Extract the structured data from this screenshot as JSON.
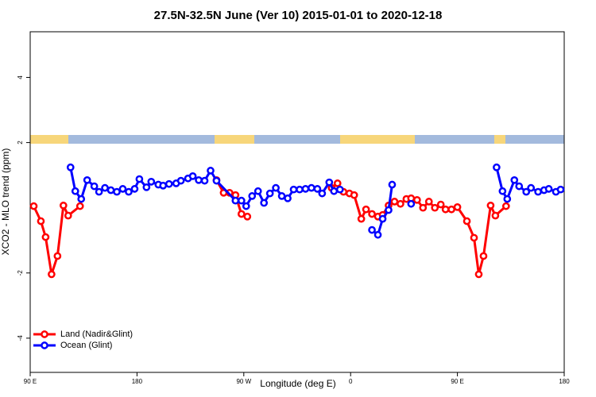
{
  "chart_data": {
    "type": "line",
    "title": "27.5N-32.5N June (Ver 10)   2015-01-01 to 2020-12-18",
    "x_label": "Longitude (deg E)",
    "y_label": "XCO2 - MLO trend (ppm)",
    "xlim": [
      90,
      540
    ],
    "ylim": [
      -5.05,
      5.4
    ],
    "xticks": [
      {
        "value": 90,
        "label": "90 E"
      },
      180,
      {
        "value": 270,
        "label": "90 W"
      },
      {
        "value": 360,
        "label": "0"
      },
      {
        "value": 450,
        "label": "90 E"
      },
      {
        "value": 540,
        "label": "180"
      }
    ],
    "yticks": [
      -4,
      -2,
      2,
      4
    ],
    "legend": "bottom-left",
    "series": [
      {
        "name": "Land (Nadir&Glint)",
        "color": "#ff0000",
        "x": [
          93,
          99,
          103,
          108,
          113,
          118,
          122,
          132,
          null,
          247,
          253,
          258,
          263,
          268,
          273,
          null,
          344,
          349,
          354,
          359,
          363,
          369,
          373,
          378,
          383,
          387,
          392,
          397,
          402,
          407,
          411,
          416,
          421,
          426,
          431,
          436,
          440,
          445,
          450,
          458,
          464,
          468,
          472,
          478,
          482,
          491
        ],
        "values": [
          0.05,
          -0.41,
          -0.9,
          -2.04,
          -1.48,
          0.07,
          -0.24,
          0.05,
          null,
          0.85,
          0.46,
          0.46,
          0.39,
          -0.19,
          -0.27,
          null,
          0.61,
          0.75,
          0.49,
          0.44,
          0.39,
          -0.34,
          -0.05,
          -0.19,
          -0.27,
          -0.22,
          0.07,
          0.19,
          0.12,
          0.27,
          0.29,
          0.24,
          0,
          0.19,
          0,
          0.1,
          -0.05,
          -0.05,
          0.02,
          -0.41,
          -0.92,
          -2.04,
          -1.48,
          0.07,
          -0.24,
          0.05
        ]
      },
      {
        "name": "Ocean (Glint)",
        "color": "#0000ff",
        "x": [
          124,
          128,
          133,
          138,
          144,
          148,
          153,
          158,
          163,
          168,
          173,
          178,
          182,
          188,
          192,
          198,
          202,
          207,
          213,
          217,
          223,
          227,
          232,
          237,
          242,
          247,
          263,
          268,
          272,
          277,
          282,
          287,
          292,
          297,
          302,
          307,
          312,
          317,
          322,
          327,
          332,
          336,
          342,
          346,
          351,
          null,
          378,
          383,
          387,
          392,
          395,
          null,
          411,
          null,
          483,
          488,
          492,
          498,
          502,
          508,
          512,
          518,
          523,
          527,
          533,
          537
        ],
        "values": [
          1.24,
          0.51,
          0.27,
          0.85,
          0.66,
          0.49,
          0.61,
          0.54,
          0.49,
          0.58,
          0.49,
          0.58,
          0.88,
          0.63,
          0.8,
          0.71,
          0.68,
          0.73,
          0.75,
          0.83,
          0.9,
          0.97,
          0.85,
          0.83,
          1.14,
          0.83,
          0.22,
          0.22,
          0.05,
          0.36,
          0.51,
          0.15,
          0.44,
          0.61,
          0.36,
          0.29,
          0.56,
          0.56,
          0.58,
          0.61,
          0.58,
          0.44,
          0.78,
          0.51,
          0.56,
          null,
          -0.68,
          -0.83,
          -0.34,
          -0.07,
          0.71,
          null,
          0.12,
          null,
          1.24,
          0.51,
          0.27,
          0.85,
          0.66,
          0.49,
          0.61,
          0.49,
          0.54,
          0.58,
          0.49,
          0.56
        ]
      }
    ]
  }
}
